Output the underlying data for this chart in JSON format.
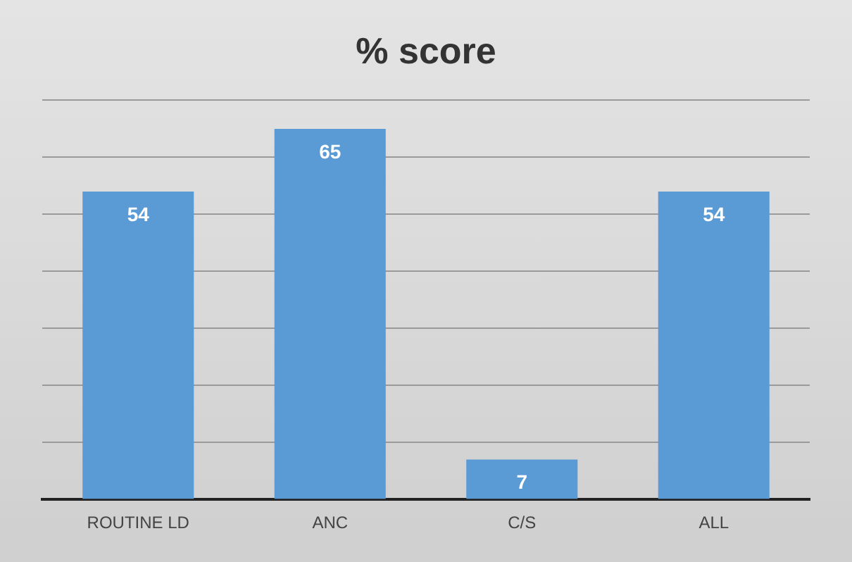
{
  "chart_data": {
    "type": "bar",
    "title": "% score",
    "categories": [
      "ROUTINE LD",
      "ANC",
      "C/S",
      "ALL"
    ],
    "values": [
      54,
      65,
      7,
      54
    ],
    "color": "#5b9bd5",
    "ylim": [
      0,
      70
    ],
    "yticks": [
      {
        "value": 0,
        "label": null
      },
      {
        "value": 10,
        "label": null
      },
      {
        "value": 20,
        "label": null
      },
      {
        "value": 30,
        "label": null
      },
      {
        "value": 40,
        "label": null
      },
      {
        "value": 50,
        "label": null
      },
      {
        "value": 60,
        "label": null
      },
      {
        "value": 70,
        "label": null
      }
    ],
    "grid": "y",
    "data_labels": true,
    "legend": false,
    "tick_labels": "x"
  }
}
